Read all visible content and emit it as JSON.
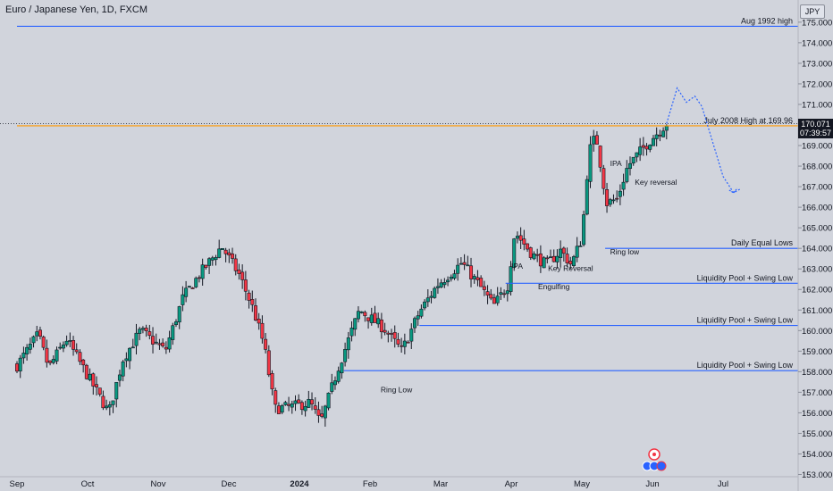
{
  "header": {
    "title": "Euro / Japanese Yen, 1D, FXCM",
    "currency": "JPY"
  },
  "price_tag": {
    "price": "170.071",
    "countdown": "07:39:57"
  },
  "chart_data": {
    "type": "candlestick",
    "title": "Euro / Japanese Yen, 1D, FXCM",
    "ylim": [
      153,
      175.5
    ],
    "y_ticks": [
      "153.000",
      "154.000",
      "155.000",
      "156.000",
      "157.000",
      "158.000",
      "159.000",
      "160.000",
      "161.000",
      "162.000",
      "163.000",
      "164.000",
      "165.000",
      "166.000",
      "167.000",
      "168.000",
      "169.000",
      "170.000",
      "171.000",
      "172.000",
      "173.000",
      "174.000",
      "175.000"
    ],
    "x_ticks": [
      "Sep",
      "Oct",
      "Nov",
      "Dec",
      "2024",
      "Feb",
      "Mar",
      "Apr",
      "May",
      "Jun",
      "Jul"
    ],
    "colors": {
      "up": "#089981",
      "down": "#f23645",
      "levels": "#2962ff",
      "orange": "#ff9800",
      "background": "#d1d4dc"
    },
    "candle_path": [
      {
        "m": 0,
        "p": 158.3
      },
      {
        "m": 0.3,
        "p": 159.8
      },
      {
        "m": 0.45,
        "p": 158.2
      },
      {
        "m": 0.7,
        "p": 159.6
      },
      {
        "m": 1.0,
        "p": 157.8
      },
      {
        "m": 1.3,
        "p": 156.0
      },
      {
        "m": 1.5,
        "p": 158.6
      },
      {
        "m": 1.75,
        "p": 160.0
      },
      {
        "m": 2.1,
        "p": 159.0
      },
      {
        "m": 2.35,
        "p": 161.6
      },
      {
        "m": 2.6,
        "p": 162.8
      },
      {
        "m": 2.9,
        "p": 164.1
      },
      {
        "m": 3.15,
        "p": 162.7
      },
      {
        "m": 3.35,
        "p": 161.0
      },
      {
        "m": 3.5,
        "p": 159.3
      },
      {
        "m": 3.65,
        "p": 156.2
      },
      {
        "m": 3.9,
        "p": 156.3
      },
      {
        "m": 4.15,
        "p": 156.5
      },
      {
        "m": 4.3,
        "p": 155.5
      },
      {
        "m": 4.55,
        "p": 158.2
      },
      {
        "m": 4.85,
        "p": 161.0
      },
      {
        "m": 5.2,
        "p": 160.1
      },
      {
        "m": 5.45,
        "p": 159.0
      },
      {
        "m": 5.7,
        "p": 160.9
      },
      {
        "m": 5.95,
        "p": 162.2
      },
      {
        "m": 6.3,
        "p": 163.3
      },
      {
        "m": 6.55,
        "p": 162.2
      },
      {
        "m": 6.75,
        "p": 161.2
      },
      {
        "m": 6.95,
        "p": 162.2
      },
      {
        "m": 7.05,
        "p": 164.8
      },
      {
        "m": 7.3,
        "p": 163.7
      },
      {
        "m": 7.5,
        "p": 163.2
      },
      {
        "m": 7.7,
        "p": 163.9
      },
      {
        "m": 7.85,
        "p": 163.2
      },
      {
        "m": 8.0,
        "p": 164.5
      },
      {
        "m": 8.1,
        "p": 168.7
      },
      {
        "m": 8.2,
        "p": 169.5
      },
      {
        "m": 8.35,
        "p": 166.2
      },
      {
        "m": 8.5,
        "p": 166.4
      },
      {
        "m": 8.65,
        "p": 168.0
      },
      {
        "m": 8.95,
        "p": 169.2
      },
      {
        "m": 9.2,
        "p": 170.07
      }
    ],
    "levels": [
      {
        "price": 174.8,
        "label": "Aug 1992 high",
        "color": "#2962ff",
        "from_month": 0
      },
      {
        "price": 169.96,
        "label": "July 2008 High at 169.96",
        "color": "#ff9800",
        "from_month": 0
      },
      {
        "price": 164.0,
        "label": "Daily Equal Lows",
        "color": "#2962ff",
        "from_month": 8.33
      },
      {
        "price": 162.3,
        "label": "Liquidity Pool + Swing Low",
        "color": "#2962ff",
        "from_month": 6.92
      },
      {
        "price": 160.25,
        "label": "Liquidity Pool + Swing Low",
        "color": "#2962ff",
        "from_month": 5.7
      },
      {
        "price": 158.05,
        "label": "Liquidity Pool + Swing Low",
        "color": "#2962ff",
        "from_month": 4.63
      }
    ],
    "projection": [
      {
        "m": 9.2,
        "p": 170.07
      },
      {
        "m": 9.35,
        "p": 171.8
      },
      {
        "m": 9.48,
        "p": 171.1
      },
      {
        "m": 9.6,
        "p": 171.4
      },
      {
        "m": 9.7,
        "p": 170.9
      },
      {
        "m": 10.0,
        "p": 167.5
      },
      {
        "m": 10.15,
        "p": 166.7
      },
      {
        "m": 10.25,
        "p": 166.9
      }
    ],
    "annotations": [
      {
        "text": "IPA",
        "m": 8.4,
        "p": 168.0
      },
      {
        "text": "Key reversal",
        "m": 8.75,
        "p": 167.1
      },
      {
        "text": "Ring low",
        "m": 8.4,
        "p": 163.7
      },
      {
        "text": "IPA",
        "m": 7.0,
        "p": 163.0
      },
      {
        "text": "Key Reversal",
        "m": 7.52,
        "p": 162.9
      },
      {
        "text": "Engulfing",
        "m": 7.38,
        "p": 162.0
      },
      {
        "text": "Ring Low",
        "m": 5.15,
        "p": 157.0
      }
    ]
  }
}
